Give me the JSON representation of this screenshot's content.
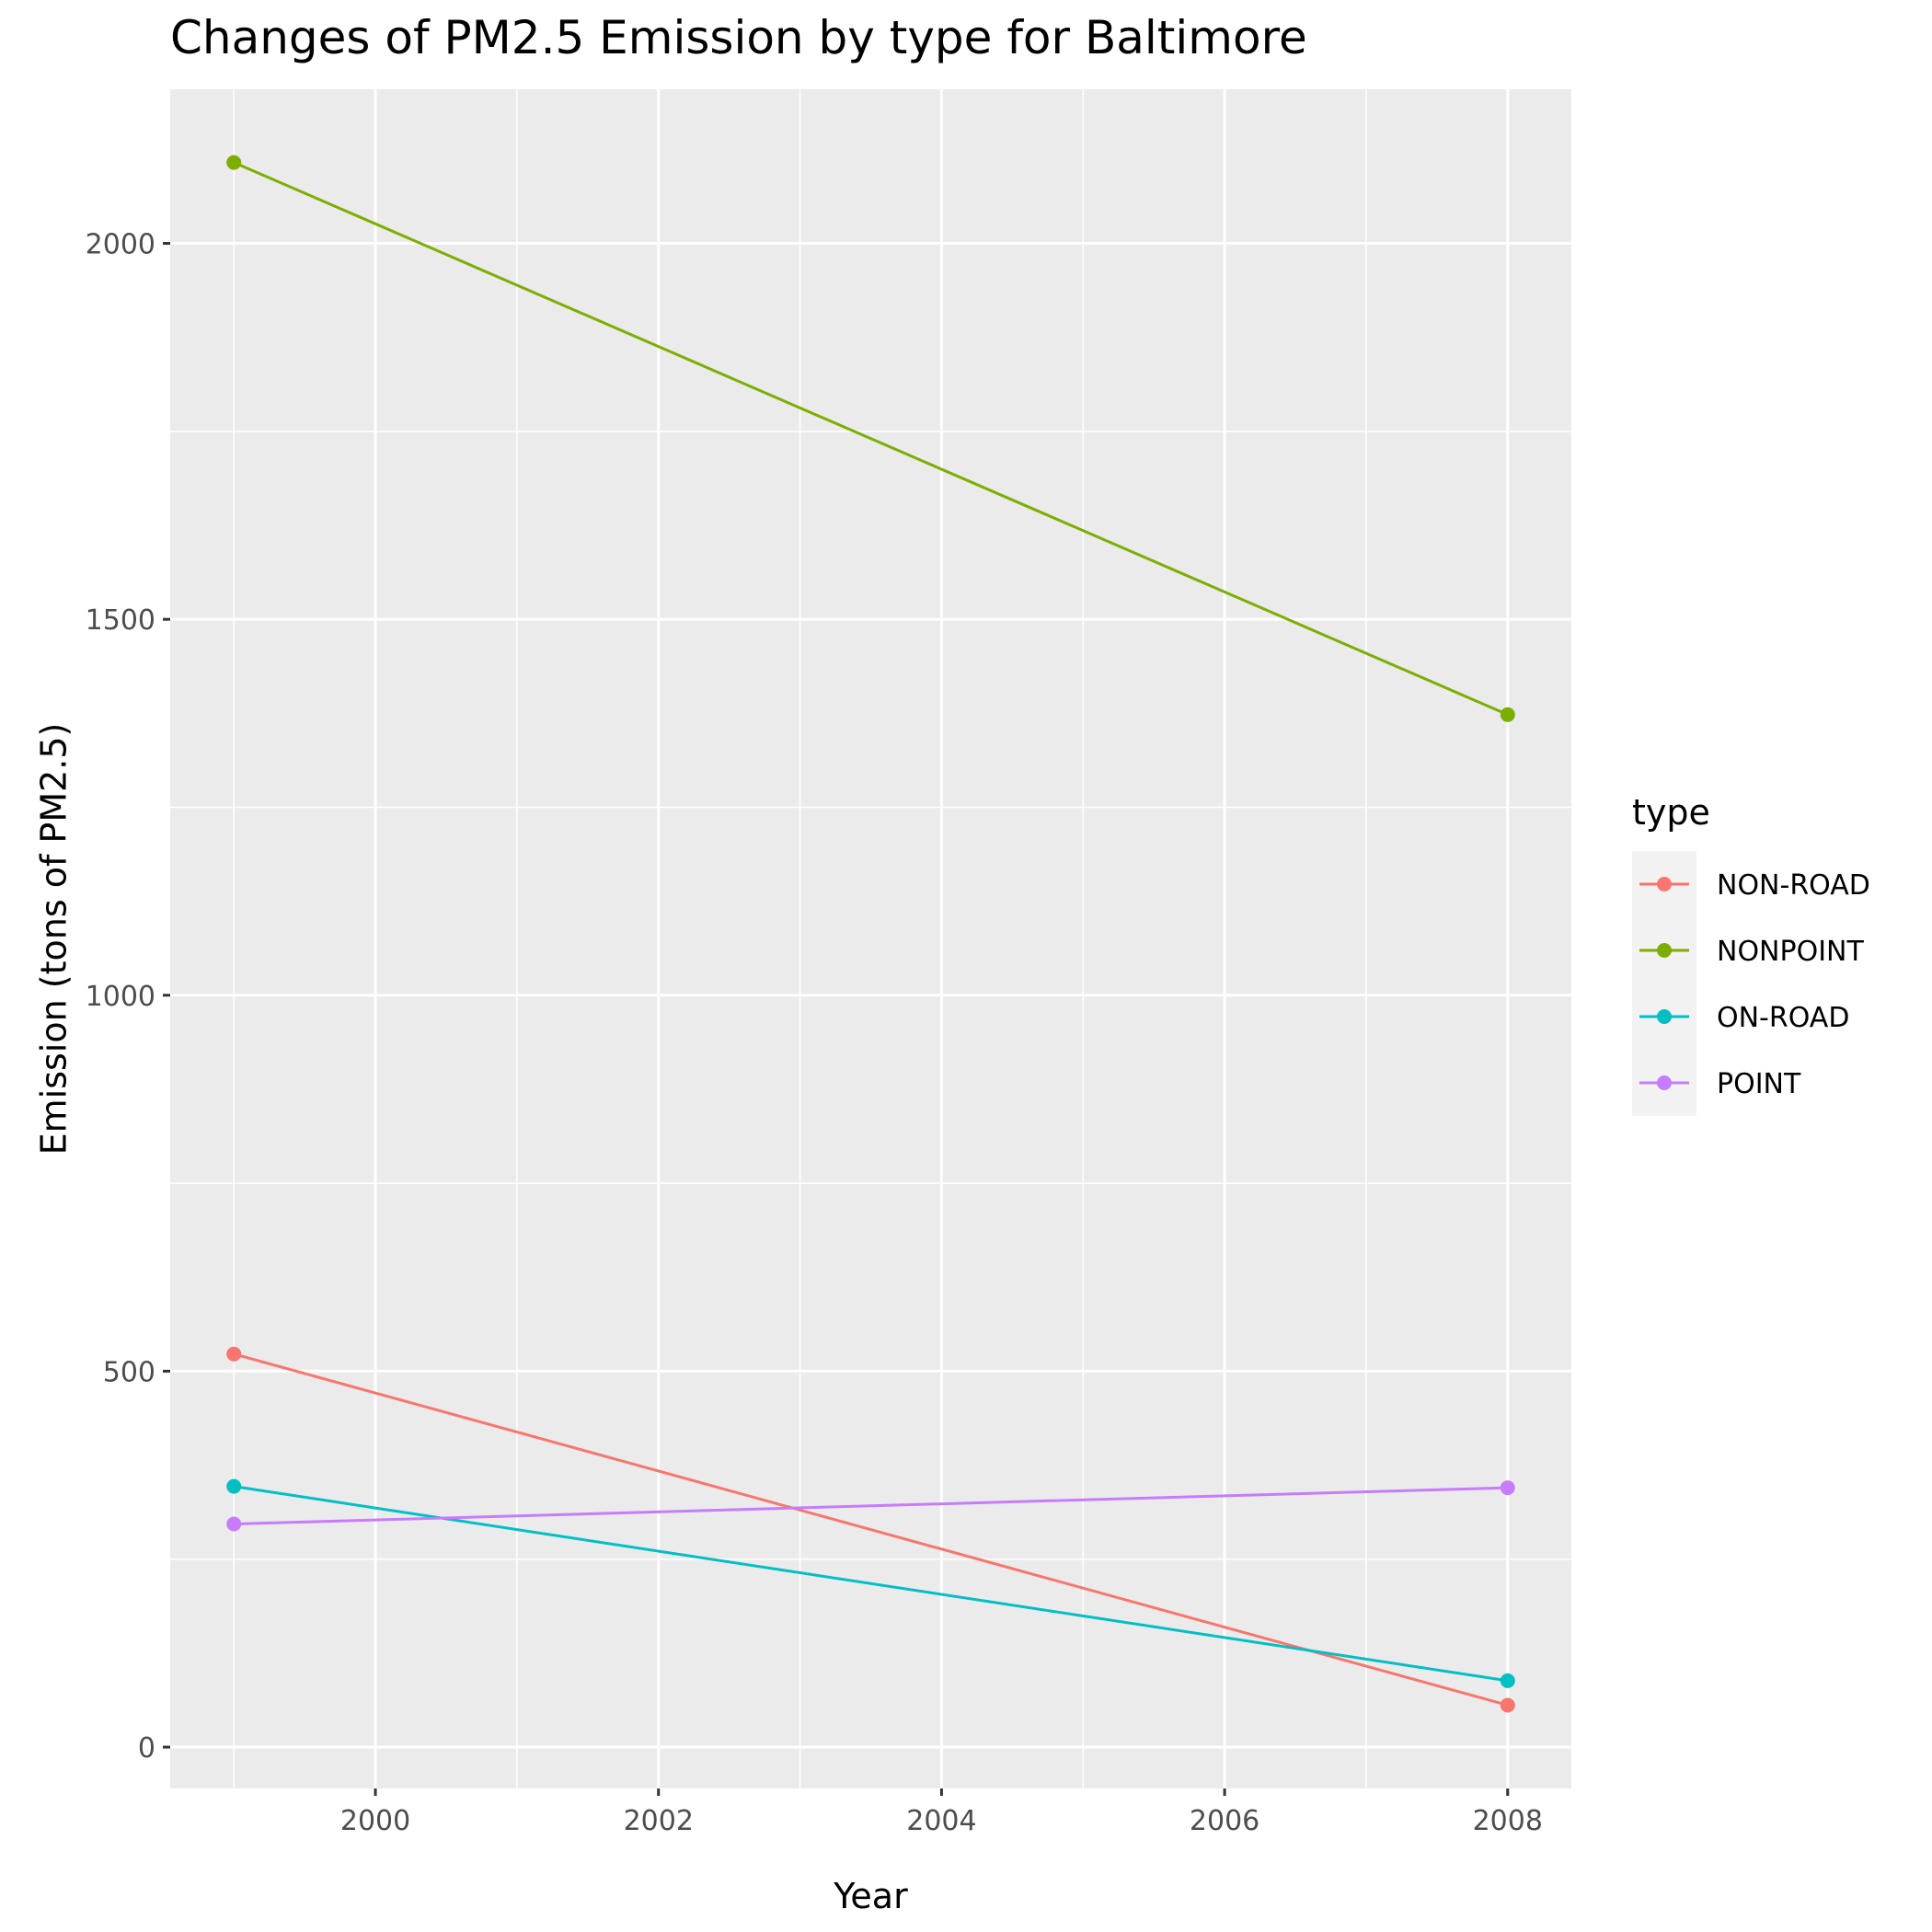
{
  "chart_data": {
    "type": "line",
    "title": "Changes of PM2.5 Emission by type for Baltimore",
    "xlabel": "Year",
    "ylabel": "Emission (tons of PM2.5)",
    "x": [
      1999,
      2008
    ],
    "xlim": [
      1998.55,
      2008.45
    ],
    "ylim": [
      -55,
      2205
    ],
    "x_ticks": [
      2000,
      2002,
      2004,
      2006,
      2008
    ],
    "y_ticks": [
      0,
      500,
      1000,
      1500,
      2000
    ],
    "x_tick_labels": [
      "2000",
      "2002",
      "2004",
      "2006",
      "2008"
    ],
    "y_tick_labels": [
      "0",
      "500",
      "1000",
      "1500",
      "2000"
    ],
    "grid": true,
    "legend": {
      "title": "type",
      "position": "right"
    },
    "series": [
      {
        "name": "NON-ROAD",
        "color": "#F8766D",
        "values": [
          522.9,
          55.8
        ]
      },
      {
        "name": "NONPOINT",
        "color": "#7CAE00",
        "values": [
          2107.6,
          1373.2
        ]
      },
      {
        "name": "ON-ROAD",
        "color": "#00BFC4",
        "values": [
          346.8,
          88.3
        ]
      },
      {
        "name": "POINT",
        "color": "#C77CFF",
        "values": [
          296.8,
          344.98
        ]
      }
    ]
  }
}
